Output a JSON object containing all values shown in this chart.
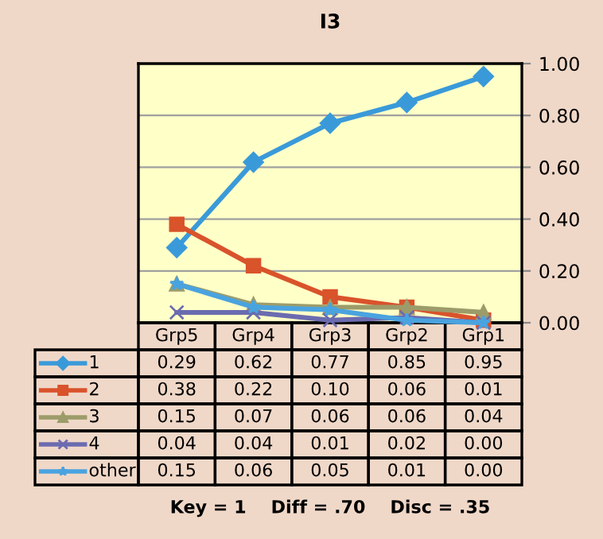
{
  "chart_data": {
    "type": "line",
    "title": "I3",
    "categories": [
      "Grp5",
      "Grp4",
      "Grp3",
      "Grp2",
      "Grp1"
    ],
    "series": [
      {
        "name": "1",
        "color": "#3a9ad9",
        "marker": "diamond",
        "values": [
          0.29,
          0.62,
          0.77,
          0.85,
          0.95
        ],
        "value_labels": [
          "0.29",
          "0.62",
          "0.77",
          "0.85",
          "0.95"
        ]
      },
      {
        "name": "2",
        "color": "#d9532b",
        "marker": "square",
        "values": [
          0.38,
          0.22,
          0.1,
          0.06,
          0.01
        ],
        "value_labels": [
          "0.38",
          "0.22",
          "0.10",
          "0.06",
          "0.01"
        ]
      },
      {
        "name": "3",
        "color": "#9c9c6a",
        "marker": "triangle",
        "values": [
          0.15,
          0.07,
          0.06,
          0.06,
          0.04
        ],
        "value_labels": [
          "0.15",
          "0.07",
          "0.06",
          "0.06",
          "0.04"
        ]
      },
      {
        "name": "4",
        "color": "#6b6bb0",
        "marker": "cross",
        "values": [
          0.04,
          0.04,
          0.01,
          0.02,
          0.0
        ],
        "value_labels": [
          "0.04",
          "0.04",
          "0.01",
          "0.02",
          "0.00"
        ]
      },
      {
        "name": "other",
        "color": "#4aa3df",
        "marker": "star",
        "values": [
          0.15,
          0.06,
          0.05,
          0.01,
          0.0
        ],
        "value_labels": [
          "0.15",
          "0.06",
          "0.05",
          "0.01",
          "0.00"
        ]
      }
    ],
    "ylim": [
      0,
      1
    ],
    "yticks": [
      {
        "value": 0,
        "label": "0.00"
      },
      {
        "value": 0.2,
        "label": "0.20"
      },
      {
        "value": 0.4,
        "label": "0.40"
      },
      {
        "value": 0.6,
        "label": "0.60"
      },
      {
        "value": 0.8,
        "label": "0.80"
      },
      {
        "value": 1,
        "label": "1.00"
      }
    ],
    "grid": "y",
    "legend": "bottom",
    "annotations": [
      "Key = 1    Diff = .70    Disc = .35"
    ]
  }
}
